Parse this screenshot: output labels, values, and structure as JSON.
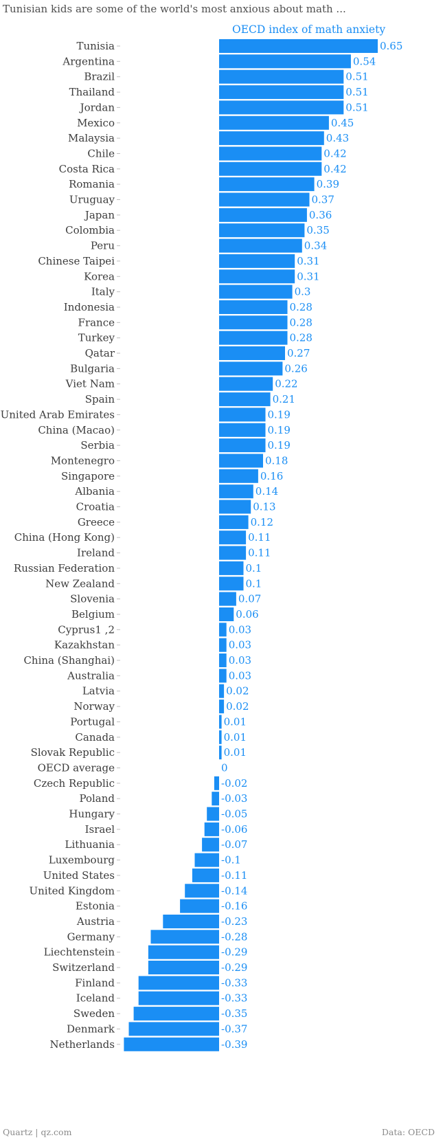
{
  "chart_data": {
    "type": "bar",
    "orientation": "horizontal",
    "title": "Tunisian kids are some of the world's most anxious about math ...",
    "series": [
      {
        "name": "OECD index of math anxiety",
        "color": "#1a8ef4",
        "values": [
          0.65,
          0.54,
          0.51,
          0.51,
          0.51,
          0.45,
          0.43,
          0.42,
          0.42,
          0.39,
          0.37,
          0.36,
          0.35,
          0.34,
          0.31,
          0.31,
          0.3,
          0.28,
          0.28,
          0.28,
          0.27,
          0.26,
          0.22,
          0.21,
          0.19,
          0.19,
          0.19,
          0.18,
          0.16,
          0.14,
          0.13,
          0.12,
          0.11,
          0.11,
          0.1,
          0.1,
          0.07,
          0.06,
          0.03,
          0.03,
          0.03,
          0.03,
          0.02,
          0.02,
          0.01,
          0.01,
          0.01,
          0,
          -0.02,
          -0.03,
          -0.05,
          -0.06,
          -0.07,
          -0.1,
          -0.11,
          -0.14,
          -0.16,
          -0.23,
          -0.28,
          -0.29,
          -0.29,
          -0.33,
          -0.33,
          -0.35,
          -0.37,
          -0.39
        ]
      }
    ],
    "categories": [
      "Tunisia",
      "Argentina",
      "Brazil",
      "Thailand",
      "Jordan",
      "Mexico",
      "Malaysia",
      "Chile",
      "Costa Rica",
      "Romania",
      "Uruguay",
      "Japan",
      "Colombia",
      "Peru",
      "Chinese Taipei",
      "Korea",
      "Italy",
      "Indonesia",
      "France",
      "Turkey",
      "Qatar",
      "Bulgaria",
      "Viet Nam",
      "Spain",
      "United Arab Emirates",
      "China (Macao)",
      "Serbia",
      "Montenegro",
      "Singapore",
      "Albania",
      "Croatia",
      "Greece",
      "China (Hong Kong)",
      "Ireland",
      "Russian Federation",
      "New Zealand",
      "Slovenia",
      "Belgium",
      "Cyprus1 ,2",
      "Kazakhstan",
      "China (Shanghai)",
      "Australia",
      "Latvia",
      "Norway",
      "Portugal",
      "Canada",
      "Slovak Republic",
      "OECD average",
      "Czech Republic",
      "Poland",
      "Hungary",
      "Israel",
      "Lithuania",
      "Luxembourg",
      "United States",
      "United Kingdom",
      "Estonia",
      "Austria",
      "Germany",
      "Liechtenstein",
      "Switzerland",
      "Finland",
      "Iceland",
      "Sweden",
      "Denmark",
      "Netherlands"
    ],
    "value_labels": [
      "0.65",
      "0.54",
      "0.51",
      "0.51",
      "0.51",
      "0.45",
      "0.43",
      "0.42",
      "0.42",
      "0.39",
      "0.37",
      "0.36",
      "0.35",
      "0.34",
      "0.31",
      "0.31",
      "0.3",
      "0.28",
      "0.28",
      "0.28",
      "0.27",
      "0.26",
      "0.22",
      "0.21",
      "0.19",
      "0.19",
      "0.19",
      "0.18",
      "0.16",
      "0.14",
      "0.13",
      "0.12",
      "0.11",
      "0.11",
      "0.1",
      "0.1",
      "0.07",
      "0.06",
      "0.03",
      "0.03",
      "0.03",
      "0.03",
      "0.02",
      "0.02",
      "0.01",
      "0.01",
      "0.01",
      "0",
      "-0.02",
      "-0.03",
      "-0.05",
      "-0.06",
      "-0.07",
      "-0.1",
      "-0.11",
      "-0.14",
      "-0.16",
      "-0.23",
      "-0.28",
      "-0.29",
      "-0.29",
      "-0.33",
      "-0.33",
      "-0.35",
      "-0.37",
      "-0.39"
    ],
    "xlim": [
      -0.39,
      0.65
    ],
    "grid": false,
    "legend": "top"
  },
  "footer": {
    "source_left": "Quartz | qz.com",
    "source_right": "Data: OECD"
  }
}
